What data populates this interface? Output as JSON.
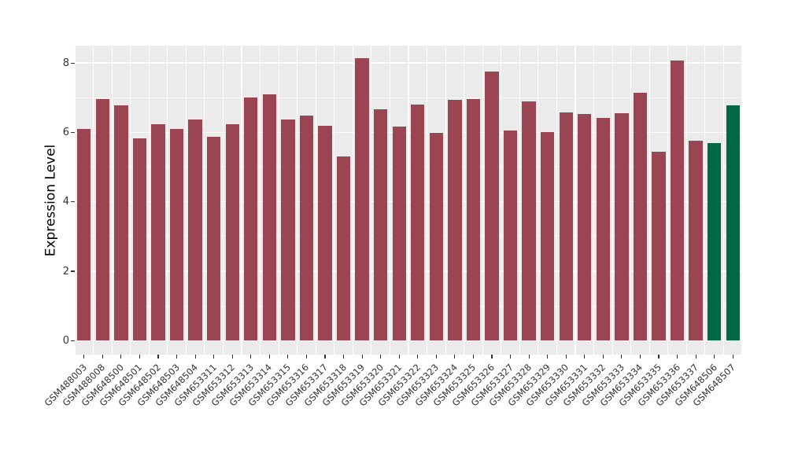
{
  "chart_data": {
    "type": "bar",
    "title": "",
    "xlabel": "",
    "ylabel": "Expression Level",
    "categories": [
      "GSM488003",
      "GSM488008",
      "GSM648500",
      "GSM648501",
      "GSM648502",
      "GSM648503",
      "GSM648504",
      "GSM653311",
      "GSM653312",
      "GSM653313",
      "GSM653314",
      "GSM653315",
      "GSM653316",
      "GSM653317",
      "GSM653318",
      "GSM653319",
      "GSM653320",
      "GSM653321",
      "GSM653322",
      "GSM653323",
      "GSM653324",
      "GSM653325",
      "GSM653326",
      "GSM653327",
      "GSM653328",
      "GSM653329",
      "GSM653330",
      "GSM653331",
      "GSM653332",
      "GSM653333",
      "GSM653334",
      "GSM653335",
      "GSM653336",
      "GSM653337",
      "GSM648506",
      "GSM648507"
    ],
    "values": [
      6.11,
      6.97,
      6.77,
      5.83,
      6.24,
      6.09,
      6.38,
      5.87,
      6.23,
      7.01,
      7.1,
      6.37,
      6.49,
      6.2,
      5.31,
      8.13,
      6.67,
      6.17,
      6.81,
      5.99,
      6.94,
      6.96,
      7.75,
      6.05,
      6.89,
      6.02,
      6.58,
      6.52,
      6.42,
      6.55,
      7.14,
      5.45,
      8.07,
      5.77,
      5.69,
      6.78
    ],
    "bar_color": "#9A4551",
    "highlight": {
      "color": "#006747",
      "indices": [
        34,
        35
      ]
    },
    "ylim": [
      0,
      8.5
    ],
    "yticks": [
      0,
      2,
      4,
      6,
      8
    ],
    "yticks_minor": [
      1,
      3,
      5,
      7
    ],
    "grid": "on",
    "legend": "none",
    "panel_bg": "#EBEBEB",
    "grid_color": "#FFFFFF",
    "tick_color": "#333333"
  }
}
